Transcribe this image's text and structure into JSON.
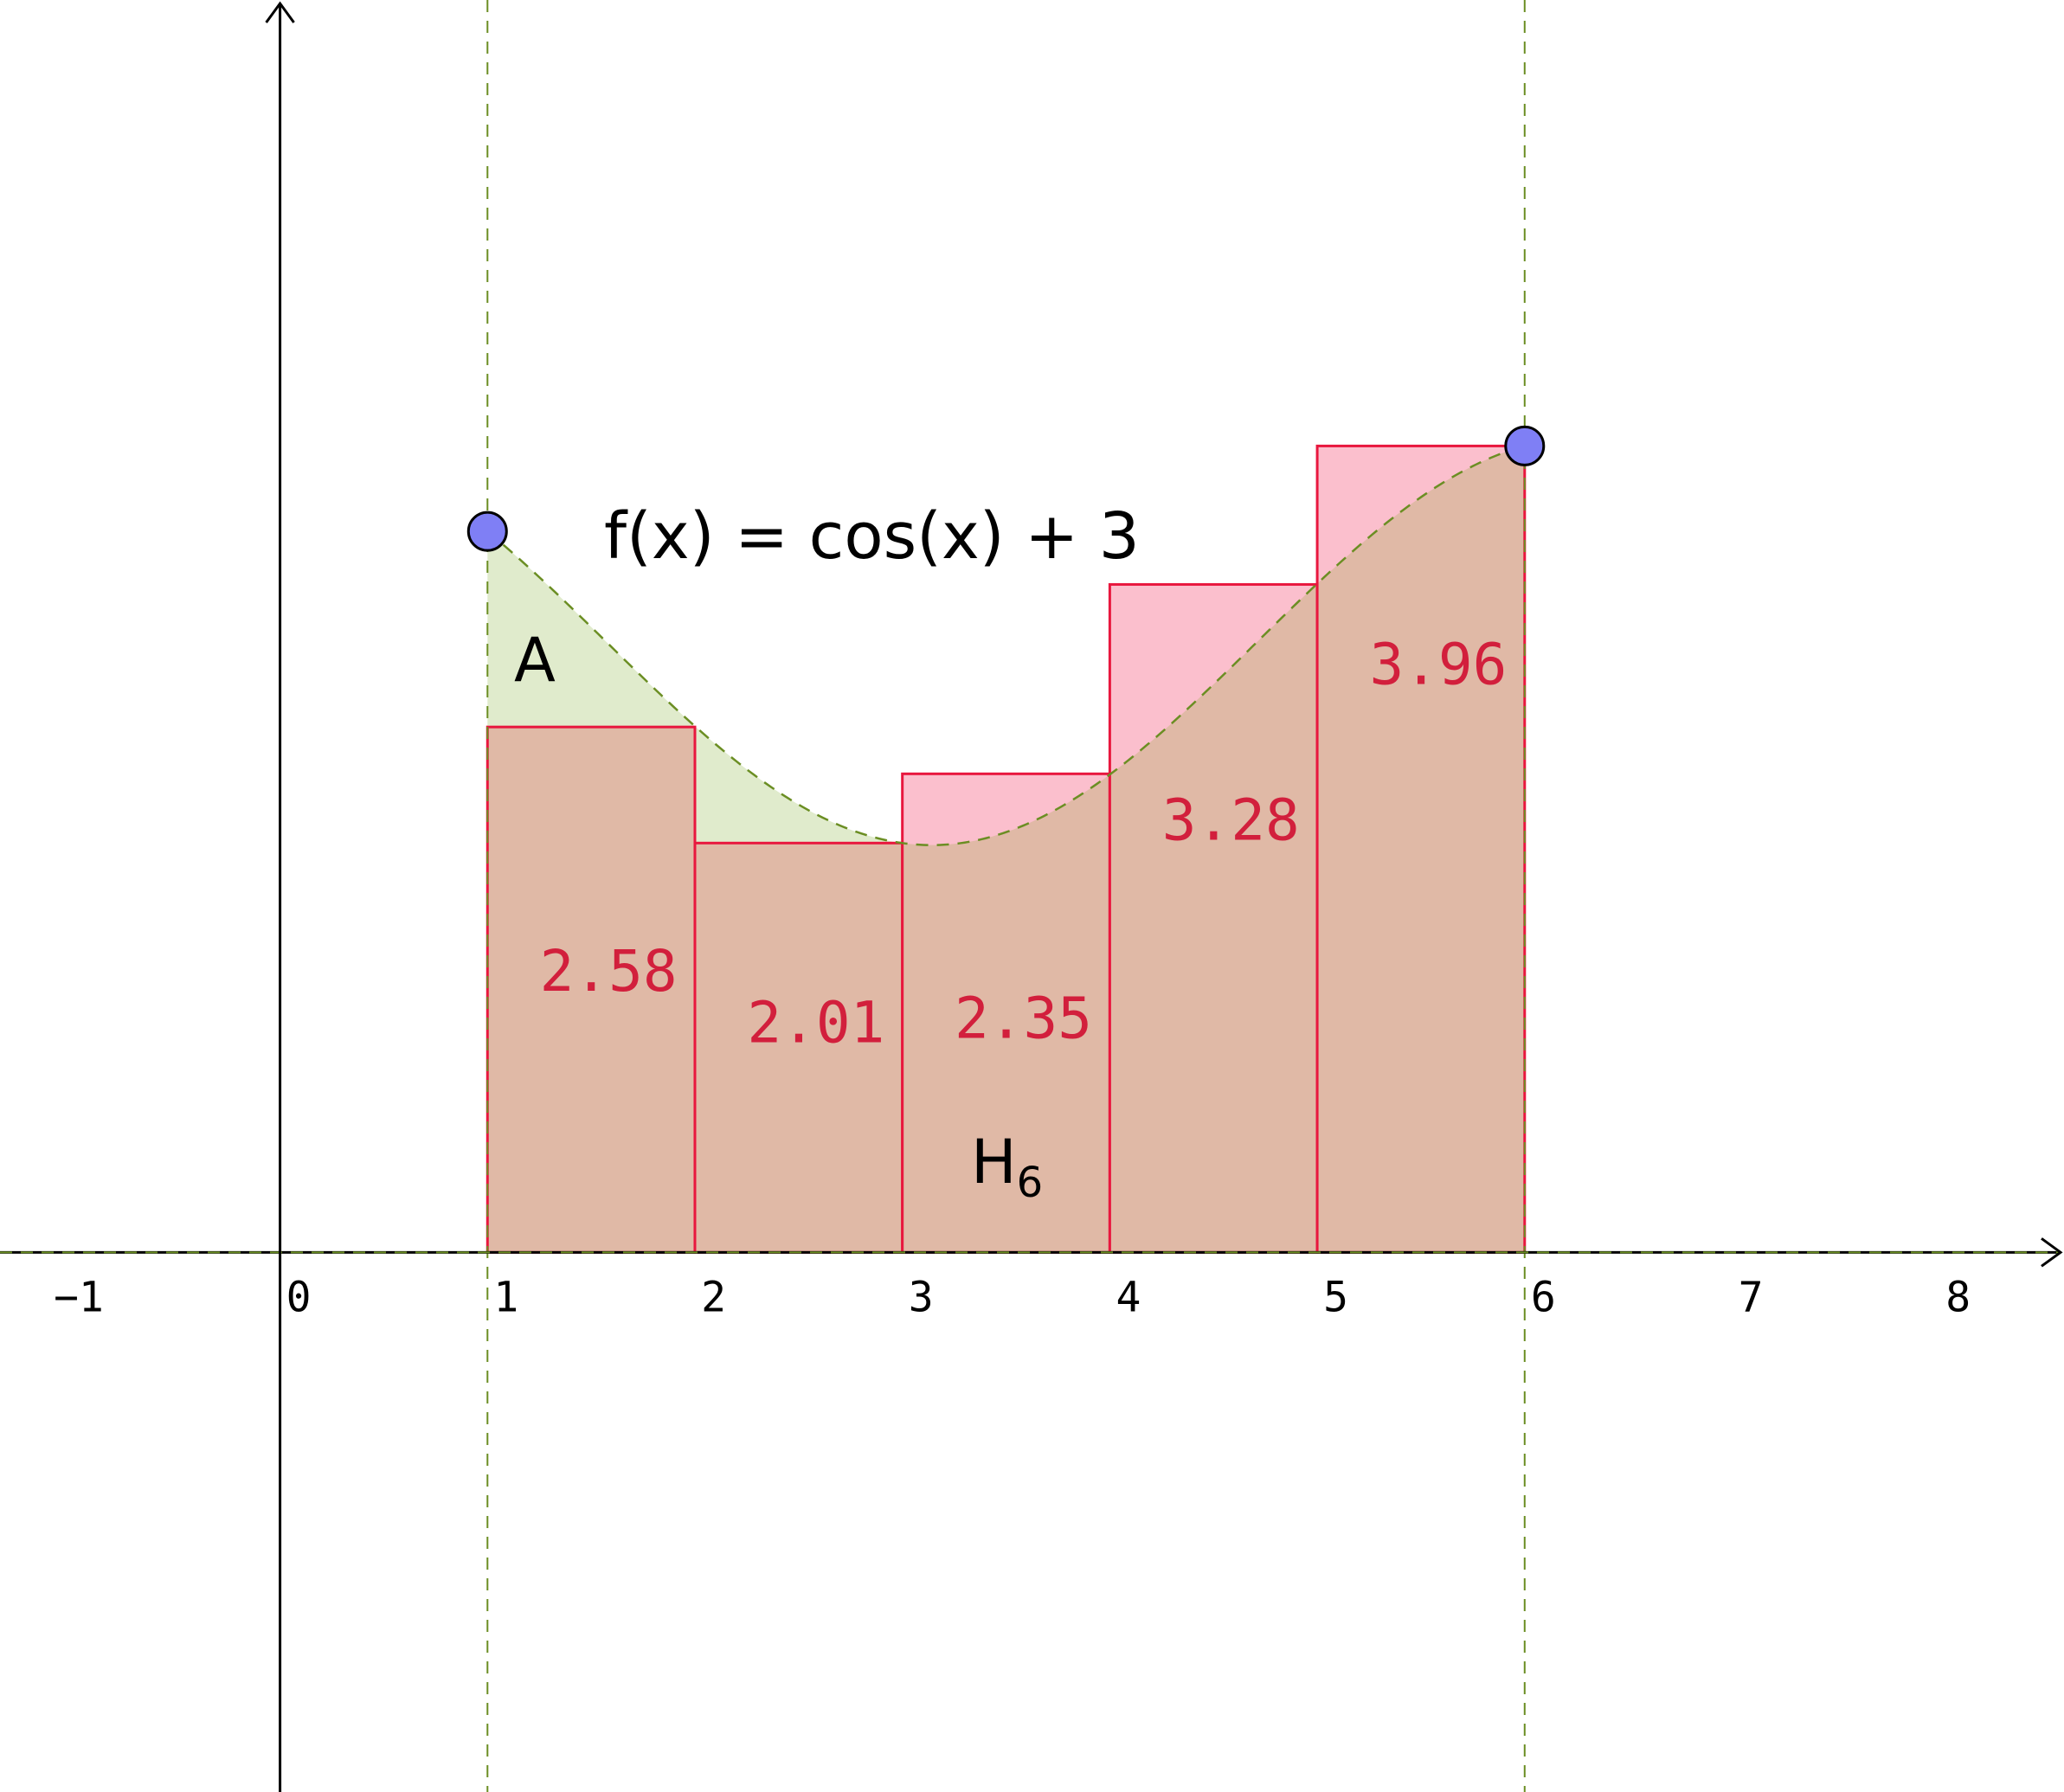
{
  "chart_data": {
    "type": "bar",
    "function_label": "f(x) = cos(x) + 3",
    "area_label": "A",
    "sum_label": {
      "base": "H",
      "subscript": "6"
    },
    "x_ticks": [
      "−1",
      "0",
      "1",
      "2",
      "3",
      "4",
      "5",
      "6",
      "7",
      "8"
    ],
    "xlim": [
      -1.35,
      8.6
    ],
    "ylim": [
      -2.65,
      6.15
    ],
    "interval": [
      1,
      6
    ],
    "rectangles": [
      {
        "x0": 1,
        "x1": 2,
        "height": 2.58,
        "label": "2.58"
      },
      {
        "x0": 2,
        "x1": 3,
        "height": 2.01,
        "label": "2.01"
      },
      {
        "x0": 3,
        "x1": 4,
        "height": 2.35,
        "label": "2.35"
      },
      {
        "x0": 4,
        "x1": 5,
        "height": 3.28,
        "label": "3.28"
      },
      {
        "x0": 5,
        "x1": 6,
        "height": 3.96,
        "label": "3.96"
      }
    ],
    "colors": {
      "rect_fill": "#fbbfcd",
      "rect_stroke": "#e8173e",
      "overlap_fill": "#e0b9a6",
      "area_fill": "#e0ebcc",
      "curve": "#6b8e23",
      "bar_label": "#d21f3c",
      "point": "#7f7ff5"
    },
    "grid": false
  }
}
